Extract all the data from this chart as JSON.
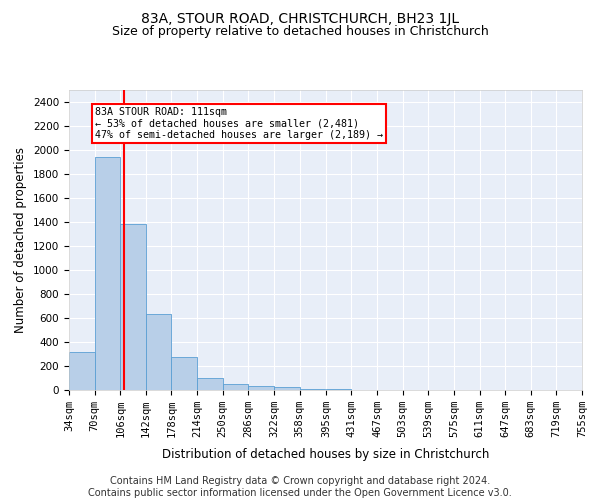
{
  "title": "83A, STOUR ROAD, CHRISTCHURCH, BH23 1JL",
  "subtitle": "Size of property relative to detached houses in Christchurch",
  "xlabel": "Distribution of detached houses by size in Christchurch",
  "ylabel": "Number of detached properties",
  "footer_line1": "Contains HM Land Registry data © Crown copyright and database right 2024.",
  "footer_line2": "Contains public sector information licensed under the Open Government Licence v3.0.",
  "property_size": 111,
  "property_label": "83A STOUR ROAD: 111sqm",
  "annotation_line2": "← 53% of detached houses are smaller (2,481)",
  "annotation_line3": "47% of semi-detached houses are larger (2,189) →",
  "bar_color": "#b8cfe8",
  "bar_edge_color": "#5a9fd4",
  "line_color": "red",
  "annotation_box_color": "red",
  "background_color": "#e8eef8",
  "bin_edges": [
    34,
    70,
    106,
    142,
    178,
    214,
    250,
    286,
    322,
    358,
    395,
    431,
    467,
    503,
    539,
    575,
    611,
    647,
    683,
    719,
    755
  ],
  "bar_heights": [
    315,
    1940,
    1380,
    630,
    275,
    100,
    50,
    30,
    25,
    10,
    5,
    3,
    2,
    2,
    1,
    1,
    1,
    0,
    0,
    0
  ],
  "ylim": [
    0,
    2500
  ],
  "yticks": [
    0,
    200,
    400,
    600,
    800,
    1000,
    1200,
    1400,
    1600,
    1800,
    2000,
    2200,
    2400
  ],
  "title_fontsize": 10,
  "subtitle_fontsize": 9,
  "axis_label_fontsize": 8.5,
  "tick_fontsize": 7.5,
  "footer_fontsize": 7
}
